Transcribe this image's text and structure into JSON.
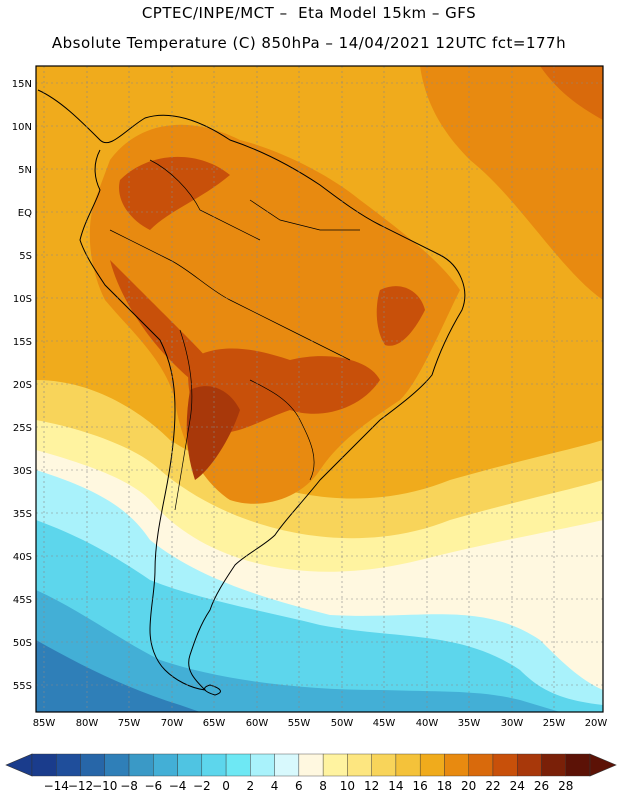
{
  "header": {
    "line1": "CPTEC/INPE/MCT –  Eta Model 15km – GFS",
    "line2": "Absolute Temperature (C) 850hPa – 14/04/2021 12UTC fct=177h"
  },
  "map": {
    "lat_labels": [
      "15N",
      "10N",
      "5N",
      "EQ",
      "5S",
      "10S",
      "15S",
      "20S",
      "25S",
      "30S",
      "35S",
      "40S",
      "45S",
      "50S",
      "55S"
    ],
    "lon_labels": [
      "85W",
      "80W",
      "75W",
      "70W",
      "65W",
      "60W",
      "55W",
      "50W",
      "45W",
      "40W",
      "35W",
      "30W",
      "25W",
      "20W"
    ],
    "lat_range": [
      -58,
      16
    ],
    "lon_range": [
      -85,
      -20
    ],
    "grid": "dotted"
  },
  "colorbar": {
    "labels": [
      "-14",
      "-12",
      "-10",
      "-8",
      "-6",
      "-4",
      "-2",
      "0",
      "2",
      "4",
      "6",
      "8",
      "10",
      "12",
      "14",
      "16",
      "18",
      "20",
      "22",
      "24",
      "26",
      "28"
    ],
    "colors": [
      "#1a3c8c",
      "#1f4e9b",
      "#2766a8",
      "#2f7fb8",
      "#3a99c6",
      "#43afd6",
      "#4fc4e2",
      "#5dd6ec",
      "#6ee8f4",
      "#a9f2fb",
      "#d8f9fd",
      "#fff8e0",
      "#fff3a0",
      "#fde680",
      "#f8d45a",
      "#f4c23a",
      "#f0ab1c",
      "#e88a10",
      "#d96a0c",
      "#c8500a",
      "#a8380a",
      "#7a2008",
      "#5c1206"
    ]
  },
  "colors": {
    "ocean_warm": "#f0ab1c",
    "ocean_hot": "#e88a10",
    "land_hot": "#c8500a",
    "cool": "#fff8e0",
    "cold": "#5dd6ec",
    "colder": "#3a99c6"
  }
}
